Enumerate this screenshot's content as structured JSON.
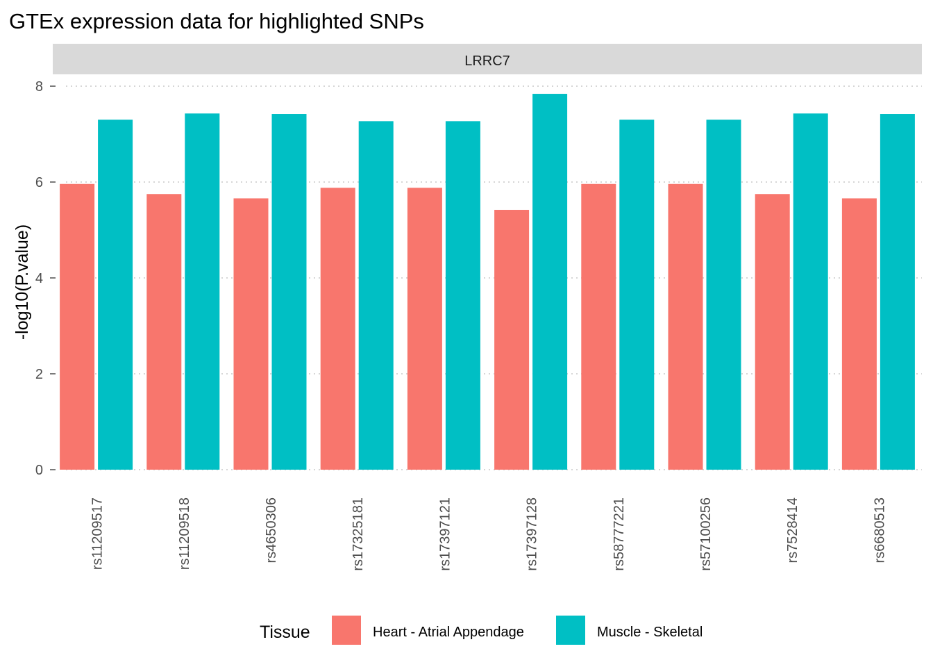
{
  "title": "GTEx expression data for highlighted SNPs",
  "chart_data": {
    "type": "bar",
    "facet": "LRRC7",
    "categories": [
      "rs11209517",
      "rs11209518",
      "rs4650306",
      "rs17325181",
      "rs17397121",
      "rs17397128",
      "rs58777221",
      "rs57100256",
      "rs7528414",
      "rs6680513"
    ],
    "series": [
      {
        "name": "Heart - Atrial Appendage",
        "color": "#F8766D",
        "values": [
          5.96,
          5.75,
          5.66,
          5.88,
          5.88,
          5.42,
          5.96,
          5.96,
          5.75,
          5.66
        ]
      },
      {
        "name": "Muscle - Skeletal",
        "color": "#00BFC4",
        "values": [
          7.3,
          7.43,
          7.42,
          7.27,
          7.27,
          7.84,
          7.3,
          7.3,
          7.43,
          7.42
        ]
      }
    ],
    "xlabel": "",
    "ylabel": "-log10(P.value)",
    "ylim": [
      0,
      8.2
    ],
    "yticks": [
      0,
      2,
      4,
      6,
      8
    ],
    "grid": true,
    "legend": {
      "title": "Tissue",
      "position": "bottom"
    }
  }
}
